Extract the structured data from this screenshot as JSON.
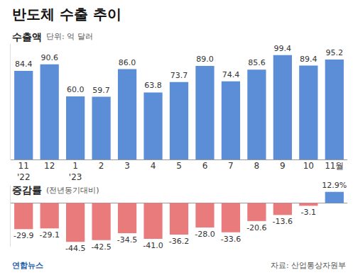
{
  "header": {
    "title": "반도체 수출 추이",
    "source": "자료: 산업통상자원부",
    "logo": "연합뉴스"
  },
  "chart_data": [
    {
      "type": "bar",
      "title": "수출액",
      "subtitle": "단위: 억 달러",
      "categories": [
        "11\n'22",
        "12",
        "1\n'23",
        "2",
        "3",
        "4",
        "5",
        "6",
        "7",
        "8",
        "9",
        "10",
        "11월"
      ],
      "values": [
        84.4,
        90.6,
        60.0,
        59.7,
        86.0,
        63.8,
        73.7,
        89.0,
        74.4,
        85.6,
        99.4,
        89.4,
        95.2
      ],
      "value_labels": [
        "84.4",
        "90.6",
        "60.0",
        "59.7",
        "86.0",
        "63.8",
        "73.7",
        "89.0",
        "74.4",
        "85.6",
        "99.4",
        "89.4",
        "95.2"
      ],
      "color": "#5b8ed6",
      "ylim": [
        0,
        110
      ],
      "data_labels": true,
      "tick_labels": "x",
      "grid": false
    },
    {
      "type": "bar",
      "title": "증감률",
      "subtitle": "(전년동기대비)",
      "categories": [
        "11\n'22",
        "12",
        "1\n'23",
        "2",
        "3",
        "4",
        "5",
        "6",
        "7",
        "8",
        "9",
        "10",
        "11월"
      ],
      "values": [
        -29.9,
        -29.1,
        -44.5,
        -42.5,
        -34.5,
        -41.0,
        -36.2,
        -28.0,
        -33.6,
        -20.6,
        -13.6,
        -3.1,
        12.9
      ],
      "value_labels": [
        "-29.9",
        "-29.1",
        "-44.5",
        "-42.5",
        "-34.5",
        "-41.0",
        "-36.2",
        "-28.0",
        "-33.6",
        "-20.6",
        "-13.6",
        "-3.1",
        "12.9%"
      ],
      "colors": [
        "#e97b7d",
        "#e97b7d",
        "#e97b7d",
        "#e97b7d",
        "#e97b7d",
        "#e97b7d",
        "#e97b7d",
        "#e97b7d",
        "#e97b7d",
        "#e97b7d",
        "#e97b7d",
        "#e97b7d",
        "#5b8ed6"
      ],
      "ylim": [
        -50,
        20
      ],
      "data_labels": true,
      "tick_labels": false,
      "grid": false
    }
  ]
}
